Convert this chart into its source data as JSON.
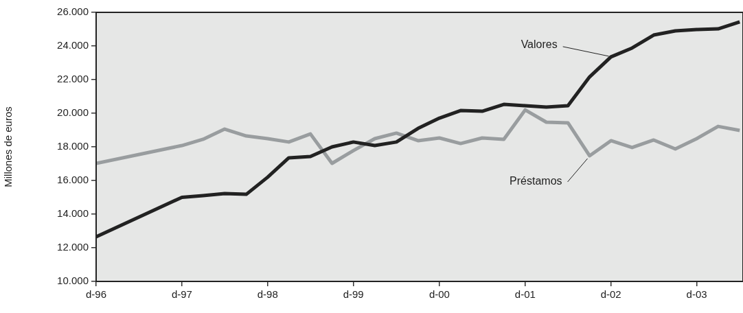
{
  "chart_data": {
    "type": "line",
    "ylabel": "Millones de euros",
    "x": [
      "1996-12",
      "1997-12",
      "1998-03",
      "1998-06",
      "1998-09",
      "1998-12",
      "1999-03",
      "1999-06",
      "1999-09",
      "1999-12",
      "2000-03",
      "2000-06",
      "2000-09",
      "2000-12",
      "2001-03",
      "2001-06",
      "2001-09",
      "2001-12",
      "2002-03",
      "2002-06",
      "2002-09",
      "2002-12",
      "2003-03",
      "2003-06",
      "2003-09",
      "2003-12",
      "2004-03",
      "2004-06"
    ],
    "series": [
      {
        "color": "#222222",
        "values": [
          12650,
          15000,
          15100,
          15220,
          15180,
          16200,
          17350,
          17430,
          18000,
          18290,
          18080,
          18290,
          19100,
          19710,
          20160,
          20120,
          20530,
          20450,
          20370,
          20450,
          22160,
          23350,
          23880,
          24650,
          24900,
          24980,
          25020,
          25430
        ]
      },
      {
        "color": "#999d9f",
        "values": [
          17020,
          18080,
          18450,
          19060,
          18650,
          18490,
          18290,
          18770,
          17020,
          17780,
          18490,
          18820,
          18370,
          18530,
          18200,
          18530,
          18450,
          20200,
          19470,
          19430,
          17470,
          18370,
          17960,
          18410,
          17880,
          18490,
          19220,
          18980
        ]
      }
    ],
    "xlim": [
      "1996-12",
      "2004-06-15"
    ],
    "xticks": [
      {
        "value": "1996-12",
        "label": "d-96"
      },
      {
        "value": "1997-12",
        "label": "d-97"
      },
      {
        "value": "1998-12",
        "label": "d-98"
      },
      {
        "value": "1999-12",
        "label": "d-99"
      },
      {
        "value": "2000-12",
        "label": "d-00"
      },
      {
        "value": "2001-12",
        "label": "d-01"
      },
      {
        "value": "2002-12",
        "label": "d-02"
      },
      {
        "value": "2003-12",
        "label": "d-03"
      }
    ],
    "ylim": [
      10000,
      26000
    ],
    "yticks": [
      {
        "value": 10000,
        "label": "10.000"
      },
      {
        "value": 12000,
        "label": "12.000"
      },
      {
        "value": 14000,
        "label": "14.000"
      },
      {
        "value": 16000,
        "label": "16.000"
      },
      {
        "value": 18000,
        "label": "18.000"
      },
      {
        "value": 20000,
        "label": "20.000"
      },
      {
        "value": 22000,
        "label": "22.000"
      },
      {
        "value": 24000,
        "label": "24.000"
      },
      {
        "value": 26000,
        "label": "26.000"
      }
    ],
    "annotations": [
      {
        "text": "Valores",
        "x": "2002-12",
        "y": 23350
      },
      {
        "text": "Préstamos",
        "x": "2002-09",
        "y": 17470
      }
    ],
    "grid": false,
    "legend": false,
    "marker": "none",
    "line_style": "solid"
  }
}
